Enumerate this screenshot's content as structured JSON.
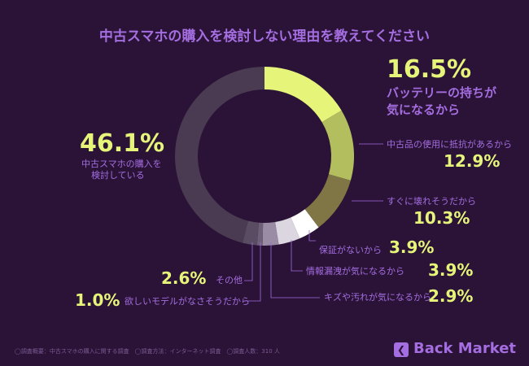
{
  "title": "中古スマホの購入を検討しない理由を教えてください",
  "chart_data": {
    "type": "pie",
    "title": "中古スマホの購入を検討しない理由を教えてください",
    "slices": [
      {
        "label": "バッテリーの持ちが気になるから",
        "value": 16.5,
        "display": "16.5%",
        "color": "#e6f57a"
      },
      {
        "label": "中古品の使用に抵抗があるから",
        "value": 12.9,
        "display": "12.9%",
        "color": "#b3bf5e"
      },
      {
        "label": "すぐに壊れそうだから",
        "value": 10.3,
        "display": "10.3%",
        "color": "#7f7545"
      },
      {
        "label": "保証がないから",
        "value": 3.9,
        "display": "3.9%",
        "color": "#ffffff"
      },
      {
        "label": "情報漏洩が気になるから",
        "value": 3.9,
        "display": "3.9%",
        "color": "#dcd6e0"
      },
      {
        "label": "キズや汚れが気になるから",
        "value": 2.9,
        "display": "2.9%",
        "color": "#9b8ca5"
      },
      {
        "label": "欲しいモデルがなさそうだから",
        "value": 1.0,
        "display": "1.0%",
        "color": "#6e6078"
      },
      {
        "label": "その他",
        "value": 2.6,
        "display": "2.6%",
        "color": "#5a4c63"
      },
      {
        "label": "中古スマホの購入を検討している",
        "value": 46.1,
        "display": "46.1%",
        "color": "#4a3a52"
      }
    ]
  },
  "labels": {
    "battery_line1": "バッテリーの持ちが",
    "battery_line2": "気になるから",
    "considering_line1": "中古スマホの購入を",
    "considering_line2": "検討している"
  },
  "footer": "◯調査概要：中古スマホの購入に関する調査　◯調査方法：インターネット調査　◯調査人数：310 人",
  "brand": {
    "name": "Back Market",
    "icon": "back-market-logo-icon"
  }
}
